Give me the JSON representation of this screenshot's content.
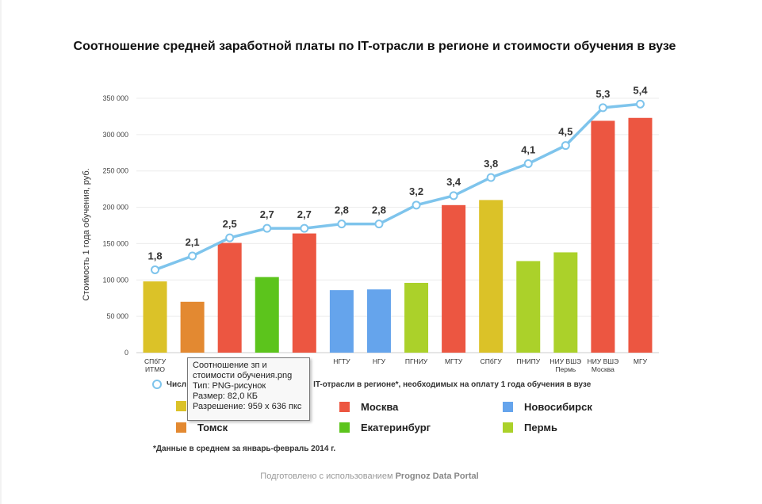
{
  "chart_data": {
    "type": "bar",
    "title": "Соотношение средней заработной платы по IT-отрасли в регионе и стоимости обучения в вузе",
    "ylabel": "Стоимость 1 года обучения, руб.",
    "ylim": [
      0,
      350000
    ],
    "yticks": [
      0,
      50000,
      100000,
      150000,
      200000,
      250000,
      300000,
      350000
    ],
    "ytick_labels": [
      "0",
      "50 000",
      "100 000",
      "150 000",
      "200 000",
      "250 000",
      "300 000",
      "350 000"
    ],
    "categories": [
      {
        "line1": "СПбГУ",
        "line2": "ИТМО"
      },
      {
        "line1": "",
        "line2": ""
      },
      {
        "line1": "",
        "line2": ""
      },
      {
        "line1": "",
        "line2": ""
      },
      {
        "line1": "И",
        "line2": ""
      },
      {
        "line1": "НГТУ",
        "line2": ""
      },
      {
        "line1": "НГУ",
        "line2": ""
      },
      {
        "line1": "ПГНИУ",
        "line2": ""
      },
      {
        "line1": "МГТУ",
        "line2": ""
      },
      {
        "line1": "СПбГУ",
        "line2": ""
      },
      {
        "line1": "ПНИПУ",
        "line2": ""
      },
      {
        "line1": "НИУ ВШЭ",
        "line2": "Пермь"
      },
      {
        "line1": "НИУ ВШЭ",
        "line2": "Москва"
      },
      {
        "line1": "МГУ",
        "line2": ""
      }
    ],
    "bar_values": [
      98000,
      70000,
      151000,
      104000,
      164000,
      86000,
      87000,
      96000,
      203000,
      210000,
      126000,
      138000,
      319000,
      323000
    ],
    "bar_regions": [
      "spb",
      "tomsk",
      "moscow",
      "ekb",
      "moscow",
      "nsk",
      "nsk",
      "perm",
      "moscow",
      "spb",
      "perm",
      "perm",
      "moscow",
      "moscow"
    ],
    "line_values": [
      114000,
      133000,
      158000,
      171000,
      171000,
      177000,
      177000,
      203000,
      216000,
      241000,
      260000,
      285000,
      337000,
      342000
    ],
    "line_labels": [
      "1,8",
      "2,1",
      "2,5",
      "2,7",
      "2,7",
      "2,8",
      "2,8",
      "3,2",
      "3,4",
      "3,8",
      "4,1",
      "4,5",
      "5,3",
      "5,4"
    ],
    "region_colors": {
      "spb": "#dbc228",
      "tomsk": "#e38931",
      "moscow": "#ec5641",
      "ekb": "#5cc41c",
      "nsk": "#65a4ec",
      "perm": "#abd12a"
    },
    "line_color": "#7ec4ec"
  },
  "line_legend": {
    "part1": "Числ",
    "part2": "IT-отрасли в регионе*, необходимых на оплату 1 года обучения в вузе"
  },
  "legend": [
    {
      "key": "spb",
      "label": "",
      "color": "#dbc228"
    },
    {
      "key": "moscow",
      "label": "Москва",
      "color": "#ec5641"
    },
    {
      "key": "nsk",
      "label": "Новосибирск",
      "color": "#65a4ec"
    },
    {
      "key": "tomsk",
      "label": "Томск",
      "color": "#e38931"
    },
    {
      "key": "ekb",
      "label": "Екатеринбург",
      "color": "#5cc41c"
    },
    {
      "key": "perm",
      "label": "Пермь",
      "color": "#abd12a"
    }
  ],
  "footnote": "*Данные в среднем за январь-февраль 2014 г.",
  "credit": {
    "prefix": "Подготовлено с использованием",
    "brand": "Prognoz Data Portal"
  },
  "tooltip": {
    "line1": "Соотношение зп и",
    "line2": "стоимости обучения.png",
    "line3": "Тип: PNG-рисунок",
    "line4": "Размер: 82,0 КБ",
    "line5": "Разрешение: 959 x 636 пкс"
  }
}
